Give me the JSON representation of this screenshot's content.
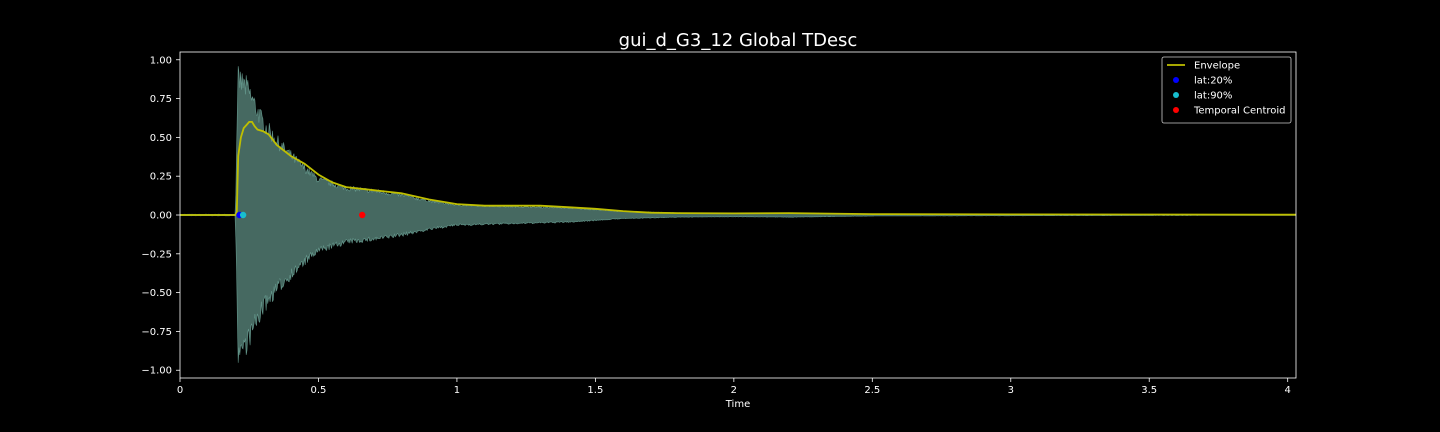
{
  "chart_data": {
    "type": "line",
    "title": "gui_d_G3_12 Global TDesc",
    "xlabel": "Time",
    "ylabel": "",
    "xlim": [
      0,
      4.03
    ],
    "ylim": [
      -1.05,
      1.05
    ],
    "x_ticks": [
      0,
      0.5,
      1,
      1.5,
      2,
      2.5,
      3,
      3.5,
      4
    ],
    "x_tick_labels": [
      "0",
      "0.5",
      "1",
      "1.5",
      "2",
      "2.5",
      "3",
      "3.5",
      "4"
    ],
    "y_ticks": [
      -1.0,
      -0.75,
      -0.5,
      -0.25,
      0.0,
      0.25,
      0.5,
      0.75,
      1.0
    ],
    "y_tick_labels": [
      "−1.00",
      "−0.75",
      "−0.50",
      "−0.25",
      "0.00",
      "0.25",
      "0.50",
      "0.75",
      "1.00"
    ],
    "grid": false,
    "legend_position": "top-right",
    "background_color": "#000000",
    "axis_color": "#ffffff",
    "series": [
      {
        "name": "Envelope",
        "kind": "line",
        "color": "#bfbf00",
        "x": [
          0,
          0.2,
          0.205,
          0.21,
          0.22,
          0.23,
          0.24,
          0.25,
          0.26,
          0.27,
          0.28,
          0.3,
          0.32,
          0.35,
          0.4,
          0.45,
          0.5,
          0.55,
          0.6,
          0.7,
          0.8,
          0.9,
          1.0,
          1.1,
          1.2,
          1.3,
          1.4,
          1.5,
          1.6,
          1.7,
          1.8,
          2.0,
          2.2,
          2.5,
          3.0,
          3.5,
          4.03
        ],
        "values": [
          0,
          0,
          0.02,
          0.38,
          0.5,
          0.56,
          0.58,
          0.6,
          0.6,
          0.57,
          0.55,
          0.54,
          0.52,
          0.45,
          0.38,
          0.33,
          0.26,
          0.21,
          0.18,
          0.16,
          0.14,
          0.1,
          0.07,
          0.06,
          0.06,
          0.06,
          0.05,
          0.04,
          0.025,
          0.015,
          0.012,
          0.01,
          0.012,
          0.006,
          0.004,
          0.003,
          0.002
        ]
      },
      {
        "name": "lat:20%",
        "kind": "point",
        "color": "#0000ff",
        "x": [
          0.215
        ],
        "values": [
          0.0
        ]
      },
      {
        "name": "lat:90%",
        "kind": "point",
        "color": "#17becf",
        "x": [
          0.228
        ],
        "values": [
          0.0
        ]
      },
      {
        "name": "Temporal Centroid",
        "kind": "point",
        "color": "#ff0000",
        "x": [
          0.658
        ],
        "values": [
          0.0
        ]
      }
    ],
    "waveform": {
      "color": "#7fbfb0",
      "fill_opacity": 0.55,
      "x": [
        0,
        0.2,
        0.205,
        0.21,
        0.22,
        0.24,
        0.26,
        0.3,
        0.35,
        0.4,
        0.45,
        0.5,
        0.6,
        0.7,
        0.8,
        0.9,
        1.0,
        1.2,
        1.4,
        1.6,
        1.8,
        2.0,
        2.2,
        2.5,
        3.0,
        3.5,
        4.03
      ],
      "upper": [
        0.005,
        0.005,
        0.5,
        0.96,
        0.94,
        0.9,
        0.82,
        0.65,
        0.52,
        0.42,
        0.33,
        0.25,
        0.19,
        0.17,
        0.14,
        0.1,
        0.07,
        0.06,
        0.05,
        0.025,
        0.015,
        0.012,
        0.015,
        0.007,
        0.005,
        0.004,
        0.003
      ],
      "lower": [
        -0.005,
        -0.005,
        -0.5,
        -0.96,
        -0.94,
        -0.9,
        -0.82,
        -0.65,
        -0.52,
        -0.42,
        -0.33,
        -0.25,
        -0.19,
        -0.17,
        -0.14,
        -0.1,
        -0.07,
        -0.06,
        -0.05,
        -0.025,
        -0.015,
        -0.012,
        -0.015,
        -0.007,
        -0.005,
        -0.004,
        -0.003
      ]
    }
  }
}
